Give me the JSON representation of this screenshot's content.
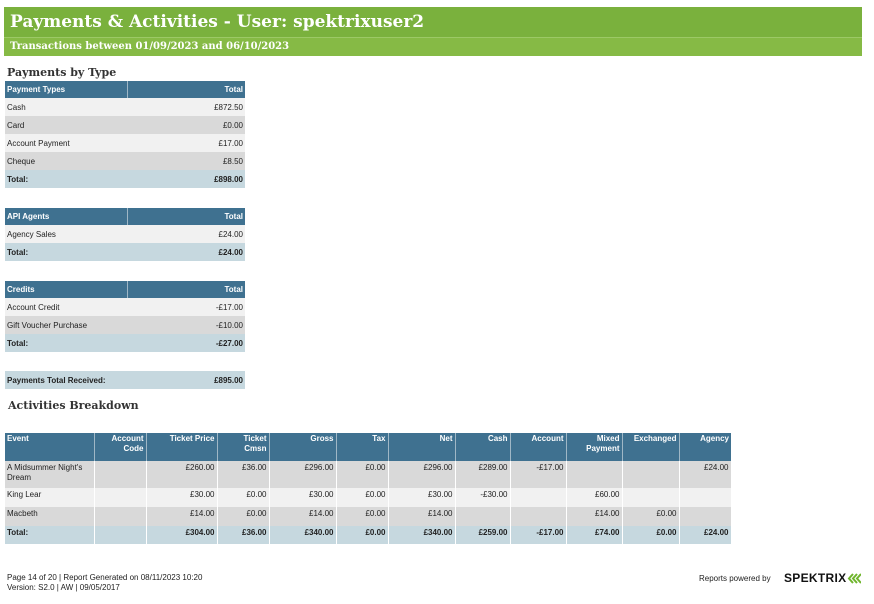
{
  "header": {
    "title": "Payments & Activities - User: spektrixuser2",
    "subtitle": "Transactions between 01/09/2023 and 06/10/2023"
  },
  "payments_by_type": {
    "heading": "Payments by Type",
    "tables": [
      {
        "columns": [
          "Payment Types",
          "Total"
        ],
        "rows": [
          [
            "Cash",
            "£872.50"
          ],
          [
            "Card",
            "£0.00"
          ],
          [
            "Account Payment",
            "£17.00"
          ],
          [
            "Cheque",
            "£8.50"
          ]
        ],
        "total": [
          "Total:",
          "£898.00"
        ]
      },
      {
        "columns": [
          "API Agents",
          "Total"
        ],
        "rows": [
          [
            "Agency Sales",
            "£24.00"
          ]
        ],
        "total": [
          "Total:",
          "£24.00"
        ]
      },
      {
        "columns": [
          "Credits",
          "Total"
        ],
        "rows": [
          [
            "Account Credit",
            "-£17.00"
          ],
          [
            "Gift Voucher Purchase",
            "-£10.00"
          ]
        ],
        "total": [
          "Total:",
          "-£27.00"
        ]
      }
    ],
    "grand_total": [
      "Payments Total Received:",
      "£895.00"
    ]
  },
  "activities": {
    "heading": "Activities Breakdown",
    "columns": [
      "Event",
      "Account Code",
      "Ticket Price",
      "Ticket Cmsn",
      "Gross",
      "Tax",
      "Net",
      "Cash",
      "Account",
      "Mixed Payment",
      "Exchanged",
      "Agency"
    ],
    "rows": [
      [
        "A Midsummer Night's Dream",
        "",
        "£260.00",
        "£36.00",
        "£296.00",
        "£0.00",
        "£296.00",
        "£289.00",
        "-£17.00",
        "",
        "",
        "£24.00"
      ],
      [
        "King Lear",
        "",
        "£30.00",
        "£0.00",
        "£30.00",
        "£0.00",
        "£30.00",
        "-£30.00",
        "",
        "£60.00",
        "",
        ""
      ],
      [
        "Macbeth",
        "",
        "£14.00",
        "£0.00",
        "£14.00",
        "£0.00",
        "£14.00",
        "",
        "",
        "£14.00",
        "£0.00",
        ""
      ]
    ],
    "total": [
      "Total:",
      "",
      "£304.00",
      "£36.00",
      "£340.00",
      "£0.00",
      "£340.00",
      "£259.00",
      "-£17.00",
      "£74.00",
      "£0.00",
      "£24.00"
    ]
  },
  "footer": {
    "page_info": "Page 14 of 20 | Report Generated on 08/11/2023 10:20",
    "version": "Version: S2.0 | AW | 09/05/2017",
    "powered_by": "Reports powered by",
    "logo_text": "SPEKTRIX",
    "logo_color": "#6fb52c"
  },
  "colors": {
    "banner": "#7ab13d",
    "table_header": "#3f7190",
    "row_light": "#f1f1f1",
    "row_dark": "#d9d9d9",
    "total_row": "#c6d8df"
  }
}
